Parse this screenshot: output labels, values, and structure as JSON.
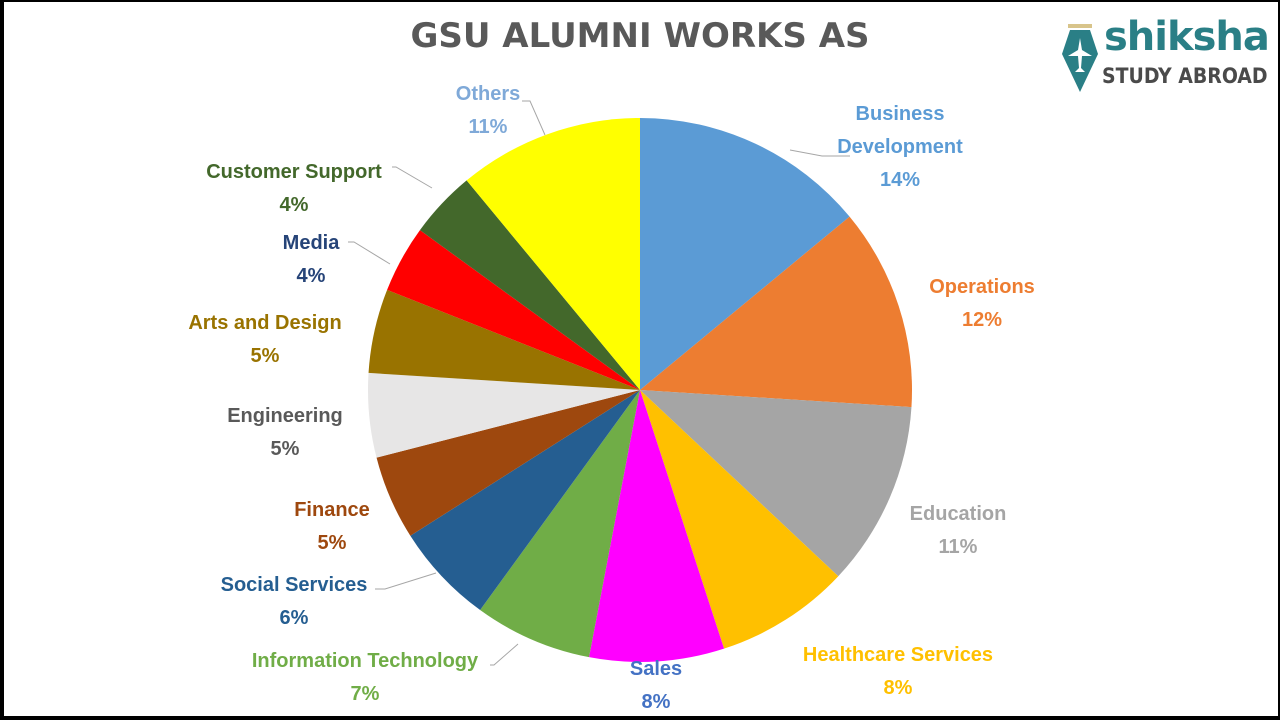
{
  "header": {
    "title": "GSU ALUMNI WORKS AS",
    "logo": {
      "icon": "pen-nib-airplane-icon",
      "word": "shiksha",
      "sub": "STUDY ABROAD",
      "word_color": "#2a7f86",
      "sub_color": "#4a4a4a"
    }
  },
  "chart_data": {
    "type": "pie",
    "title": "GSU ALUMNI WORKS AS",
    "start_angle": "12 o'clock, clockwise",
    "categories": [
      "Business Development",
      "Operations",
      "Education",
      "Healthcare Services",
      "Sales",
      "Information Technology",
      "Social Services",
      "Finance",
      "Engineering",
      "Arts and Design",
      "Media",
      "Customer Support",
      "Others"
    ],
    "values": [
      14,
      12,
      11,
      8,
      8,
      7,
      6,
      5,
      5,
      5,
      4,
      4,
      11
    ],
    "unit": "%",
    "colors": [
      "#5b9bd5",
      "#ed7d31",
      "#a5a5a5",
      "#ffc000",
      "#ff00ff",
      "#70ad47",
      "#255e91",
      "#9e480e",
      "#e7e6e6",
      "#997300",
      "#ff0000",
      "#43682b",
      "#ffff00"
    ],
    "label_colors": [
      "#5b9bd5",
      "#ed7d31",
      "#a5a5a5",
      "#ffc000",
      "#4472c4",
      "#70ad47",
      "#255e91",
      "#9e480e",
      "#595959",
      "#997300",
      "#264478",
      "#43682b",
      "#7fa9d8"
    ],
    "labels": [
      {
        "name": "Business Development",
        "lines": [
          "Business",
          "Development",
          "14%"
        ]
      },
      {
        "name": "Operations",
        "lines": [
          "Operations",
          "12%"
        ]
      },
      {
        "name": "Education",
        "lines": [
          "Education",
          "11%"
        ]
      },
      {
        "name": "Healthcare Services",
        "lines": [
          "Healthcare Services",
          "8%"
        ]
      },
      {
        "name": "Sales",
        "lines": [
          "Sales",
          "8%"
        ]
      },
      {
        "name": "Information Technology",
        "lines": [
          "Information Technology",
          "7%"
        ]
      },
      {
        "name": "Social Services",
        "lines": [
          "Social Services",
          "6%"
        ]
      },
      {
        "name": "Finance",
        "lines": [
          "Finance",
          "5%"
        ]
      },
      {
        "name": "Engineering",
        "lines": [
          "Engineering",
          "5%"
        ]
      },
      {
        "name": "Arts and Design",
        "lines": [
          "Arts and Design",
          "5%"
        ]
      },
      {
        "name": "Media",
        "lines": [
          "Media",
          "4%"
        ]
      },
      {
        "name": "Customer Support",
        "lines": [
          "Customer Support",
          "4%"
        ]
      },
      {
        "name": "Others",
        "lines": [
          "Others",
          "11%"
        ]
      }
    ],
    "legend": "none (data labels with leader lines)"
  }
}
